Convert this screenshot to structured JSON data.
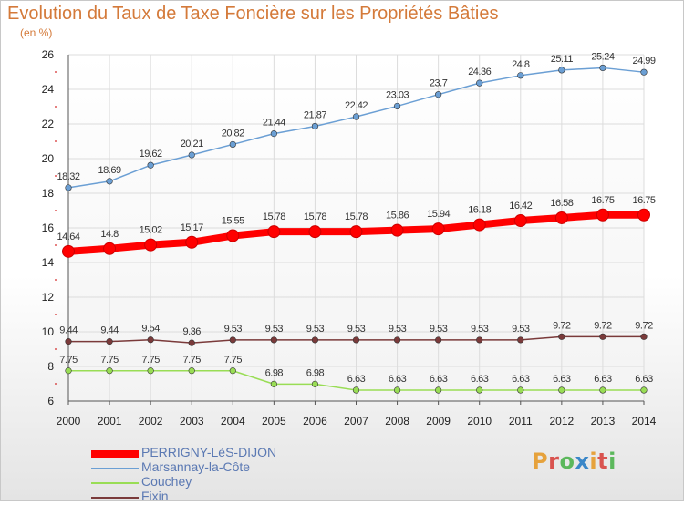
{
  "title": "Evolution du Taux de Taxe Foncière sur les Propriétés Bâties",
  "unit_label": "(en %)",
  "logo": {
    "text": "Proxiti",
    "colors": [
      "#e6a23c",
      "#d9534f",
      "#5cb85c",
      "#3a87c8",
      "#e6a23c",
      "#d9534f",
      "#5cb85c"
    ]
  },
  "chart_data": {
    "type": "line",
    "x": [
      "2000",
      "2001",
      "2002",
      "2003",
      "2004",
      "2005",
      "2006",
      "2007",
      "2008",
      "2009",
      "2010",
      "2011",
      "2012",
      "2013",
      "2014"
    ],
    "ylim": [
      6,
      26
    ],
    "yticks": [
      "6",
      "8",
      "10",
      "12",
      "14",
      "16",
      "18",
      "20",
      "22",
      "24",
      "26"
    ],
    "grid": true,
    "legend_position": "bottom",
    "series": [
      {
        "name": "PERRIGNY-LèS-DIJON",
        "color": "#ff0000",
        "values": [
          14.64,
          14.8,
          15.02,
          15.17,
          15.55,
          15.78,
          15.78,
          15.78,
          15.86,
          15.94,
          16.18,
          16.42,
          16.58,
          16.75,
          16.75
        ],
        "labels": [
          "14.64",
          "14.8",
          "15.02",
          "15.17",
          "15.55",
          "15.78",
          "15.78",
          "15.78",
          "15.86",
          "15.94",
          "16.18",
          "16.42",
          "16.58",
          "16.75",
          "16.75"
        ]
      },
      {
        "name": "Marsannay-la-Côte",
        "color": "#6b9fd4",
        "values": [
          18.32,
          18.69,
          19.62,
          20.21,
          20.82,
          21.44,
          21.87,
          22.42,
          23.03,
          23.7,
          24.36,
          24.8,
          25.11,
          25.24,
          24.99
        ],
        "labels": [
          "18.32",
          "18.69",
          "19.62",
          "20.21",
          "20.82",
          "21.44",
          "21.87",
          "22.42",
          "23.03",
          "23.7",
          "24.36",
          "24.8",
          "25.11",
          "25.24",
          "24.99"
        ]
      },
      {
        "name": "Couchey",
        "color": "#99dd55",
        "values": [
          7.75,
          7.75,
          7.75,
          7.75,
          7.75,
          6.98,
          6.98,
          6.63,
          6.63,
          6.63,
          6.63,
          6.63,
          6.63,
          6.63,
          6.63
        ],
        "labels": [
          "7.75",
          "7.75",
          "7.75",
          "7.75",
          "7.75",
          "6.98",
          "6.98",
          "6.63",
          "6.63",
          "6.63",
          "6.63",
          "6.63",
          "6.63",
          "6.63",
          "6.63"
        ]
      },
      {
        "name": "Fixin",
        "color": "#7a3a3a",
        "values": [
          9.44,
          9.44,
          9.54,
          9.36,
          9.53,
          9.53,
          9.53,
          9.53,
          9.53,
          9.53,
          9.53,
          9.53,
          9.72,
          9.72,
          9.72
        ],
        "labels": [
          "9.44",
          "9.44",
          "9.54",
          "9.36",
          "9.53",
          "9.53",
          "9.53",
          "9.53",
          "9.53",
          "9.53",
          "9.53",
          "9.53",
          "9.72",
          "9.72",
          "9.72"
        ]
      }
    ]
  }
}
